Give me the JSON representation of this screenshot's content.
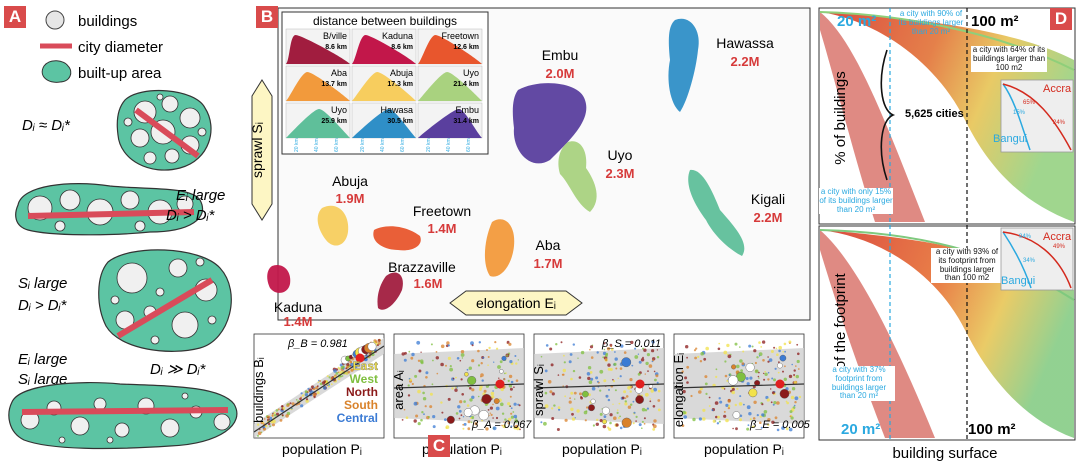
{
  "panels": {
    "a": {
      "tag": "A",
      "legend": [
        {
          "id": "buildings",
          "label": "buildings"
        },
        {
          "id": "diameter",
          "label": "city diameter"
        },
        {
          "id": "builtup",
          "label": "built-up area"
        }
      ],
      "cases": [
        {
          "left": "Dᵢ ≈ Dᵢ*",
          "right": ""
        },
        {
          "left": "",
          "right": "Eᵢ large",
          "right2": "Dᵢ > Dᵢ*"
        },
        {
          "left": "Sᵢ large",
          "left2": "Dᵢ > Dᵢ*"
        },
        {
          "left": "Eᵢ large",
          "left2": "Sᵢ large",
          "right": "Dᵢ ≫ Dᵢ*"
        }
      ]
    },
    "b": {
      "tag": "B",
      "inset_title": "distance between buildings",
      "inset_cells": [
        {
          "city": "B/ville",
          "dist": "8.6 km",
          "color": "#a11d3f"
        },
        {
          "city": "Kaduna",
          "dist": "8.6 km",
          "color": "#c2174a"
        },
        {
          "city": "Freetown",
          "dist": "12.6 km",
          "color": "#e8562d"
        },
        {
          "city": "Aba",
          "dist": "13.7 km",
          "color": "#f29a3c"
        },
        {
          "city": "Abuja",
          "dist": "17.3 km",
          "color": "#f7cd5e"
        },
        {
          "city": "Uyo",
          "dist": "21.4 km",
          "color": "#a9d27f"
        },
        {
          "city": "Uyo",
          "dist": "25.9 km",
          "color": "#5fbf9a"
        },
        {
          "city": "Hawasa",
          "dist": "30.5 km",
          "color": "#2f8fc7"
        },
        {
          "city": "Embu",
          "dist": "31.4 km",
          "color": "#5a3f9e"
        }
      ],
      "inset_ticks": [
        "20 km",
        "40 km",
        "60 km"
      ],
      "y_axis_label": "sprawl Sᵢ",
      "x_axis_label": "elongation Eᵢ",
      "cities": [
        {
          "name": "Embu",
          "pop": "2.0M",
          "color": "#5a3f9e"
        },
        {
          "name": "Hawassa",
          "pop": "2.2M",
          "color": "#2f8fc7"
        },
        {
          "name": "Uyo",
          "pop": "2.3M",
          "color": "#a9d27f"
        },
        {
          "name": "Kigali",
          "pop": "2.2M",
          "color": "#5fbf9a"
        },
        {
          "name": "Abuja",
          "pop": "1.9M",
          "color": "#f7cd5e"
        },
        {
          "name": "Freetown",
          "pop": "1.4M",
          "color": "#e8562d"
        },
        {
          "name": "Aba",
          "pop": "1.7M",
          "color": "#f29a3c"
        },
        {
          "name": "Brazzaville",
          "pop": "1.6M",
          "color": "#a11d3f"
        },
        {
          "name": "Kaduna",
          "pop": "1.4M",
          "color": "#c2174a"
        }
      ],
      "pop_color": "#d63a3a"
    },
    "c": {
      "tag": "C",
      "plots": [
        {
          "ylabel": "buildings Bᵢ",
          "xlabel": "population Pᵢ",
          "beta": "β_B = 0.981"
        },
        {
          "ylabel": "area Aᵢ",
          "xlabel": "population Pᵢ",
          "beta": "β_A = 0.067"
        },
        {
          "ylabel": "sprawl Sᵢ",
          "xlabel": "population Pᵢ",
          "beta": "β_S = 0.011"
        },
        {
          "ylabel": "elongation Eᵢ",
          "xlabel": "population Pᵢ",
          "beta": "β_E = 0.005"
        }
      ],
      "regions": [
        {
          "label": "East",
          "color": "#f2e24a"
        },
        {
          "label": "West",
          "color": "#7fbf3f"
        },
        {
          "label": "North",
          "color": "#8b1a1a"
        },
        {
          "label": "South",
          "color": "#d9822b"
        },
        {
          "label": "Central",
          "color": "#3b7bd4"
        }
      ]
    },
    "d": {
      "tag": "D",
      "top_left_label": "20 m²",
      "top_right_label": "100 m²",
      "bottom_left_label": "20 m²",
      "bottom_right_label": "100 m²",
      "top_ylabel": "% of buildings",
      "bottom_ylabel": "% of the footprint",
      "xlabel": "building surface",
      "cities_count": "5,625 cities",
      "ann_top_1": "a city with 90% of its buildings larger than 20 m²",
      "ann_top_2": "a city with 64% of its buildings larger than 100 m2",
      "ann_top_3": "a city with only 15% of its buildings larger than 20 m²",
      "ann_bot_1": "a city with 93% of its footprint from buildings larger than 100 m2",
      "ann_bot_2": "a city with 37% footprint from buildings larger than 20 m²",
      "inset_top": {
        "accra": "Accra",
        "bangui": "Bangui",
        "p1": "65%",
        "p2": "24%",
        "p3": "15%"
      },
      "inset_bot": {
        "accra": "Accra",
        "bangui": "Bangui",
        "p1": "94%",
        "p2": "49%",
        "p3": "34%"
      }
    }
  }
}
